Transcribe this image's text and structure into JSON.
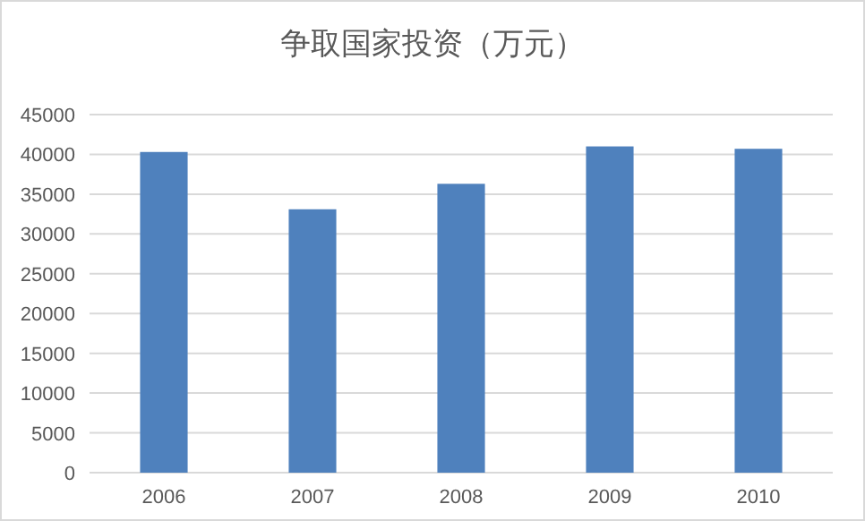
{
  "chart_data": {
    "type": "bar",
    "title": "争取国家投资（万元）",
    "categories": [
      "2006",
      "2007",
      "2008",
      "2009",
      "2010"
    ],
    "values": [
      40300,
      33100,
      36300,
      41000,
      40700
    ],
    "color": "#4f81bd",
    "ylim": [
      0,
      45000
    ],
    "yticks": [
      0,
      5000,
      10000,
      15000,
      20000,
      25000,
      30000,
      35000,
      40000,
      45000
    ],
    "grid": "y"
  }
}
